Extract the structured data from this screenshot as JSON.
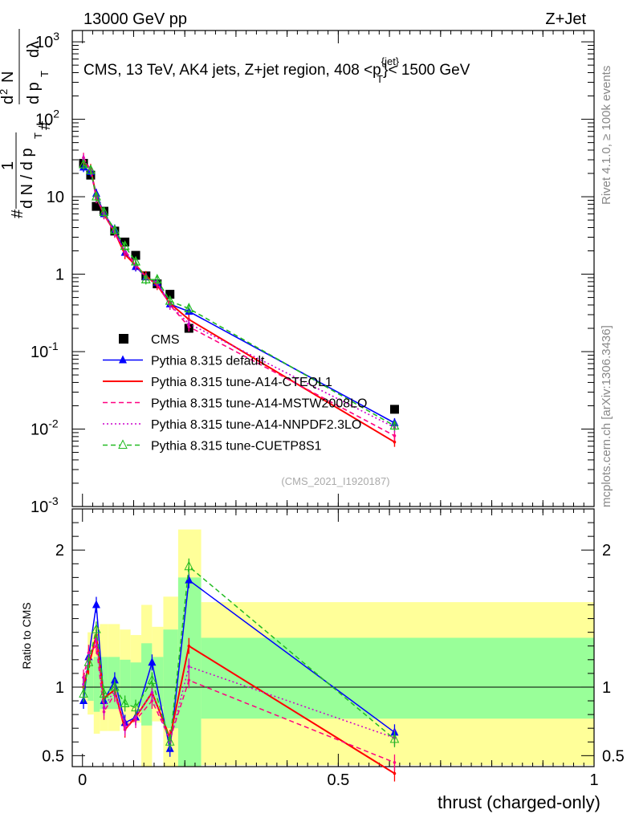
{
  "header": {
    "beam": "13000 GeV pp",
    "process": "Z+Jet",
    "side_rivet": "Rivet 4.1.0, ≥ 100k events",
    "side_site": "mcplots.cern.ch [arXiv:1306.3436]",
    "analysis_id": "(CMS_2021_I1920187)"
  },
  "main_title": {
    "prefix": "CMS, 13 TeV, AK4 jets, Z+jet region, 408 <p",
    "sup": "{jet}",
    "sub": "T",
    "suffix": "}< 1500 GeV"
  },
  "ylabel_main": {
    "hash1": "#",
    "one": "1",
    "denom": "d N / d p",
    "hash2": "#",
    "d2n": "d",
    "n": "N",
    "sup2": "2",
    "dpt": "d p",
    "dl": "dλ",
    "sub_t": "T"
  },
  "ylabel_ratio": "Ratio to CMS",
  "xlabel": "thrust (charged-only)",
  "colors": {
    "cms": "#000000",
    "default": "#0000ff",
    "a14cteq": "#ff0000",
    "a14mstw": "#ff0080",
    "a14nnpdf": "#cc00cc",
    "cuetp8s1": "#22bb22",
    "band_outer": "#ffff99",
    "band_inner": "#99ff99"
  },
  "chart_data": [
    {
      "type": "scatter",
      "name": "main",
      "yscale": "log",
      "xlim": [
        -0.02,
        1.0
      ],
      "ylim": [
        0.001,
        1400
      ],
      "xticks": [
        0,
        0.5,
        1
      ],
      "ytick_labels": [
        "10^-3",
        "10^-2",
        "10^-1",
        "1",
        "10",
        "10^2",
        "10^3"
      ],
      "legend_position": "middle-left",
      "series": [
        {
          "name": "CMS",
          "style": "square",
          "color_key": "cms",
          "x": [
            0.002,
            0.016,
            0.027,
            0.042,
            0.063,
            0.083,
            0.104,
            0.124,
            0.146,
            0.171,
            0.208,
            0.61
          ],
          "y": [
            27,
            19,
            7.5,
            6.5,
            3.6,
            2.6,
            1.75,
            0.95,
            0.75,
            0.55,
            0.2,
            0.018
          ]
        },
        {
          "name": "Pythia 8.315 default",
          "style": "line-triangle",
          "color_key": "default",
          "x": [
            0.002,
            0.016,
            0.027,
            0.042,
            0.063,
            0.083,
            0.104,
            0.124,
            0.146,
            0.171,
            0.208,
            0.61
          ],
          "y": [
            24,
            21,
            11,
            6.0,
            3.8,
            1.9,
            1.25,
            0.92,
            0.78,
            0.41,
            0.33,
            0.012
          ]
        },
        {
          "name": "Pythia 8.315 tune-A14-CTEQL1",
          "style": "line",
          "color_key": "a14cteq",
          "x": [
            0.002,
            0.016,
            0.027,
            0.042,
            0.063,
            0.083,
            0.104,
            0.124,
            0.146,
            0.171,
            0.208,
            0.61
          ],
          "y": [
            28,
            23,
            10,
            5.9,
            3.5,
            1.8,
            1.3,
            0.95,
            0.72,
            0.42,
            0.26,
            0.0068
          ]
        },
        {
          "name": "Pythia 8.315 tune-A14-MSTW2008LO",
          "style": "dashed",
          "color_key": "a14mstw",
          "x": [
            0.002,
            0.016,
            0.027,
            0.042,
            0.063,
            0.083,
            0.104,
            0.124,
            0.146,
            0.171,
            0.208,
            0.61
          ],
          "y": [
            32,
            22,
            9.5,
            6.1,
            3.4,
            2.0,
            1.35,
            0.9,
            0.75,
            0.4,
            0.21,
            0.0082
          ]
        },
        {
          "name": "Pythia 8.315 tune-A14-NNPDF2.3LO",
          "style": "dotted",
          "color_key": "a14nnpdf",
          "x": [
            0.002,
            0.016,
            0.027,
            0.042,
            0.063,
            0.083,
            0.104,
            0.124,
            0.146,
            0.171,
            0.208,
            0.61
          ],
          "y": [
            30,
            22,
            9.8,
            6.0,
            3.5,
            1.95,
            1.3,
            0.88,
            0.8,
            0.4,
            0.23,
            0.0105
          ]
        },
        {
          "name": "Pythia 8.315 tune-CUETP8S1",
          "style": "dashed-triangle-open",
          "color_key": "cuetp8s1",
          "x": [
            0.002,
            0.016,
            0.027,
            0.042,
            0.063,
            0.083,
            0.104,
            0.124,
            0.146,
            0.171,
            0.208,
            0.61
          ],
          "y": [
            26,
            22,
            10,
            6.3,
            3.7,
            2.3,
            1.45,
            0.85,
            0.85,
            0.45,
            0.36,
            0.011
          ]
        }
      ]
    },
    {
      "type": "line",
      "name": "ratio",
      "xlim": [
        -0.02,
        1.0
      ],
      "ylim": [
        0.42,
        2.3
      ],
      "ytick_labels": [
        "0.5",
        "1",
        "2"
      ],
      "bands": {
        "edges": [
          0.0,
          0.01,
          0.022,
          0.034,
          0.05,
          0.073,
          0.094,
          0.115,
          0.136,
          0.158,
          0.187,
          0.232,
          1.0
        ],
        "outer_low": [
          0.88,
          0.8,
          0.66,
          0.68,
          0.68,
          0.72,
          0.74,
          0.36,
          0.75,
          0.32,
          0.42,
          0.43
        ],
        "outer_high": [
          1.1,
          1.4,
          1.44,
          1.46,
          1.46,
          1.42,
          1.38,
          1.6,
          1.44,
          1.66,
          2.15,
          1.62
        ],
        "inner_low": [
          0.93,
          0.9,
          0.82,
          0.84,
          0.84,
          0.86,
          0.86,
          0.72,
          0.86,
          0.7,
          0.42,
          0.77
        ],
        "inner_high": [
          1.06,
          1.2,
          1.22,
          1.22,
          1.22,
          1.2,
          1.18,
          1.32,
          1.22,
          1.42,
          1.8,
          1.36
        ]
      },
      "series": [
        {
          "name": "Pythia 8.315 default",
          "color_key": "default",
          "x": [
            0.002,
            0.012,
            0.027,
            0.042,
            0.063,
            0.083,
            0.104,
            0.136,
            0.171,
            0.208,
            0.61
          ],
          "y": [
            0.9,
            1.22,
            1.6,
            0.9,
            1.05,
            0.74,
            0.78,
            1.18,
            0.55,
            1.78,
            0.67
          ]
        },
        {
          "name": "Pythia 8.315 tune-A14-CTEQL1",
          "color_key": "a14cteq",
          "x": [
            0.002,
            0.012,
            0.027,
            0.042,
            0.063,
            0.083,
            0.104,
            0.136,
            0.171,
            0.208,
            0.61
          ],
          "y": [
            1.0,
            1.15,
            1.38,
            0.92,
            0.98,
            0.69,
            0.78,
            0.96,
            0.63,
            1.3,
            0.37
          ]
        },
        {
          "name": "Pythia 8.315 tune-A14-MSTW2008LO",
          "color_key": "a14mstw",
          "x": [
            0.002,
            0.012,
            0.027,
            0.042,
            0.063,
            0.083,
            0.104,
            0.136,
            0.171,
            0.208,
            0.61
          ],
          "y": [
            1.07,
            1.25,
            1.3,
            0.82,
            0.95,
            0.7,
            0.76,
            0.9,
            0.62,
            1.05,
            0.45
          ]
        },
        {
          "name": "Pythia 8.315 tune-A14-NNPDF2.3LO",
          "color_key": "a14nnpdf",
          "x": [
            0.002,
            0.012,
            0.027,
            0.042,
            0.063,
            0.083,
            0.104,
            0.136,
            0.171,
            0.208,
            0.61
          ],
          "y": [
            1.02,
            1.2,
            1.35,
            0.85,
            0.98,
            0.72,
            0.78,
            0.96,
            0.6,
            1.15,
            0.63
          ]
        },
        {
          "name": "Pythia 8.315 tune-CUETP8S1",
          "color_key": "cuetp8s1",
          "x": [
            0.002,
            0.012,
            0.027,
            0.042,
            0.063,
            0.083,
            0.104,
            0.136,
            0.171,
            0.208,
            0.61
          ],
          "y": [
            0.95,
            1.18,
            1.42,
            0.95,
            1.0,
            0.88,
            0.85,
            1.05,
            0.6,
            1.88,
            0.62
          ]
        }
      ]
    }
  ],
  "ratio_tick_labels": {
    "x": [
      "0",
      "0.5",
      "1"
    ]
  }
}
